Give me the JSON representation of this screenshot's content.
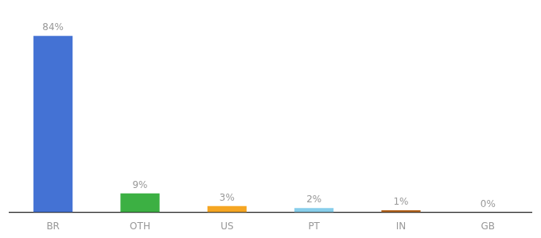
{
  "chart_data": {
    "type": "bar",
    "categories": [
      "BR",
      "OTH",
      "US",
      "PT",
      "IN",
      "GB"
    ],
    "values": [
      84,
      9,
      3,
      2,
      1,
      0
    ],
    "value_labels": [
      "84%",
      "9%",
      "3%",
      "2%",
      "1%",
      "0%"
    ],
    "data_labels": true,
    "colors": [
      "#4472d4",
      "#3cb043",
      "#f5a623",
      "#87ceeb",
      "#b5651d",
      "#b5651d"
    ],
    "ylim": [
      0,
      92
    ],
    "grid": false,
    "tick_labels": "x"
  }
}
